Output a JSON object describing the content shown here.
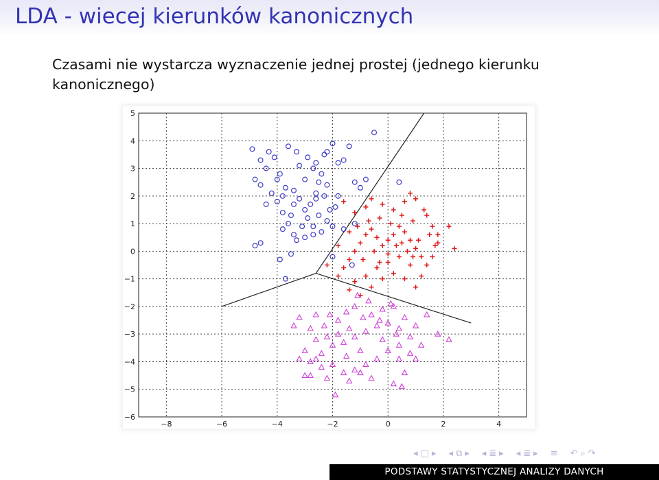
{
  "slide": {
    "title": "LDA - wiecej kierunków kanonicznych",
    "text": "Czasami nie wystarcza wyznaczenie jednej prostej (jednego kierunku kanonicznego)"
  },
  "footer": {
    "right_text": "PODSTAWY STATYSTYCZNEJ ANALIZY DANYCH"
  },
  "colors": {
    "title": "#3333b3",
    "class_blue": "#3c3cc8",
    "class_red": "#e01818",
    "class_magenta": "#d040d8",
    "footer_bg": "#000000"
  },
  "chart_data": {
    "type": "scatter",
    "title": "",
    "xlabel": "",
    "ylabel": "",
    "xlim": [
      -9,
      5
    ],
    "ylim": [
      -6,
      5
    ],
    "xticks": [
      -8,
      -6,
      -4,
      -2,
      0,
      2,
      4
    ],
    "yticks": [
      5,
      4,
      3,
      2,
      1,
      0,
      -1,
      -2,
      -3,
      -4,
      -5,
      -6
    ],
    "grid": true,
    "series": [
      {
        "marker": "circle",
        "color": "#3c3cc8",
        "points": [
          [
            -4.9,
            3.7
          ],
          [
            -4.6,
            3.3
          ],
          [
            -4.4,
            3.0
          ],
          [
            -4.8,
            2.6
          ],
          [
            -4.6,
            2.4
          ],
          [
            -4.2,
            2.1
          ],
          [
            -4.4,
            1.7
          ],
          [
            -4.0,
            1.8
          ],
          [
            -3.8,
            1.4
          ],
          [
            -3.6,
            1.0
          ],
          [
            -3.8,
            0.8
          ],
          [
            -3.4,
            0.6
          ],
          [
            -3.0,
            0.5
          ],
          [
            -2.7,
            0.6
          ],
          [
            -2.4,
            0.7
          ],
          [
            -2.0,
            0.9
          ],
          [
            -1.9,
            1.6
          ],
          [
            -1.8,
            2.0
          ],
          [
            -2.2,
            2.4
          ],
          [
            -2.4,
            2.8
          ],
          [
            -2.6,
            3.2
          ],
          [
            -2.3,
            3.5
          ],
          [
            -2.0,
            3.9
          ],
          [
            -1.6,
            3.3
          ],
          [
            -1.4,
            3.8
          ],
          [
            -1.2,
            2.5
          ],
          [
            -1.0,
            2.3
          ],
          [
            -0.8,
            2.6
          ],
          [
            -3.2,
            3.1
          ],
          [
            -3.0,
            2.6
          ],
          [
            -3.4,
            2.2
          ],
          [
            -3.2,
            1.9
          ],
          [
            -2.8,
            1.7
          ],
          [
            -2.6,
            2.1
          ],
          [
            -2.9,
            1.2
          ],
          [
            -3.1,
            0.9
          ],
          [
            -3.5,
            1.3
          ],
          [
            -3.7,
            2.3
          ],
          [
            -3.9,
            2.8
          ],
          [
            -4.1,
            3.4
          ],
          [
            -4.3,
            3.6
          ],
          [
            -3.6,
            3.8
          ],
          [
            -3.3,
            3.6
          ],
          [
            -2.9,
            3.4
          ],
          [
            -2.7,
            3.0
          ],
          [
            -2.5,
            2.5
          ],
          [
            -2.3,
            2.0
          ],
          [
            -2.1,
            1.5
          ],
          [
            -2.5,
            1.3
          ],
          [
            -2.7,
            0.9
          ],
          [
            -3.3,
            0.4
          ],
          [
            -4.6,
            0.3
          ],
          [
            -4.8,
            0.2
          ],
          [
            -3.5,
            -0.1
          ],
          [
            -3.9,
            -0.3
          ],
          [
            -3.7,
            -1.0
          ],
          [
            -2.0,
            -0.2
          ],
          [
            -1.3,
            -0.5
          ],
          [
            -0.5,
            4.3
          ],
          [
            -1.2,
            1.0
          ],
          [
            -1.6,
            0.8
          ],
          [
            0.4,
            2.5
          ],
          [
            -2.2,
            3.6
          ],
          [
            -1.8,
            3.2
          ],
          [
            -3.0,
            1.5
          ],
          [
            -3.4,
            1.7
          ],
          [
            -3.8,
            2.0
          ],
          [
            -4.0,
            2.6
          ],
          [
            -2.6,
            1.9
          ],
          [
            -2.2,
            1.1
          ]
        ]
      },
      {
        "marker": "plus",
        "color": "#e01818",
        "points": [
          [
            -1.6,
            1.8
          ],
          [
            -1.2,
            1.4
          ],
          [
            -0.8,
            1.6
          ],
          [
            -0.6,
            1.9
          ],
          [
            -0.2,
            1.7
          ],
          [
            0.2,
            1.5
          ],
          [
            0.6,
            1.8
          ],
          [
            0.8,
            2.1
          ],
          [
            1.0,
            1.9
          ],
          [
            1.4,
            1.3
          ],
          [
            1.6,
            0.9
          ],
          [
            1.8,
            0.6
          ],
          [
            2.2,
            0.9
          ],
          [
            2.4,
            0.1
          ],
          [
            1.8,
            0.3
          ],
          [
            1.6,
            -0.2
          ],
          [
            1.4,
            -0.5
          ],
          [
            1.2,
            -0.2
          ],
          [
            1.0,
            0.1
          ],
          [
            0.8,
            0.4
          ],
          [
            0.6,
            0.7
          ],
          [
            0.4,
            0.9
          ],
          [
            0.2,
            0.6
          ],
          [
            0.0,
            0.4
          ],
          [
            -0.2,
            0.2
          ],
          [
            -0.4,
            0.5
          ],
          [
            -0.6,
            0.8
          ],
          [
            -0.8,
            0.6
          ],
          [
            -1.0,
            0.3
          ],
          [
            -1.2,
            0.0
          ],
          [
            -1.4,
            -0.3
          ],
          [
            -1.6,
            -0.6
          ],
          [
            -1.8,
            -0.9
          ],
          [
            -1.2,
            -1.1
          ],
          [
            -0.8,
            -0.9
          ],
          [
            -0.4,
            -0.6
          ],
          [
            0.0,
            -0.4
          ],
          [
            0.4,
            -0.2
          ],
          [
            0.8,
            -0.5
          ],
          [
            1.2,
            -0.9
          ],
          [
            1.0,
            -1.3
          ],
          [
            0.6,
            -1.0
          ],
          [
            0.2,
            -0.8
          ],
          [
            -0.2,
            -1.0
          ],
          [
            -0.6,
            -1.3
          ],
          [
            -1.0,
            -1.6
          ],
          [
            -1.4,
            -1.4
          ],
          [
            0.3,
            0.2
          ],
          [
            0.7,
            0.0
          ],
          [
            1.1,
            0.4
          ],
          [
            1.5,
            0.6
          ],
          [
            -0.3,
            1.2
          ],
          [
            -0.7,
            1.1
          ],
          [
            0.1,
            1.0
          ],
          [
            0.5,
            1.3
          ],
          [
            0.9,
            1.1
          ],
          [
            1.3,
            1.5
          ],
          [
            -1.1,
            0.9
          ],
          [
            -0.5,
            0.0
          ],
          [
            0.0,
            -0.1
          ],
          [
            0.5,
            0.3
          ],
          [
            -1.4,
            0.7
          ],
          [
            -1.8,
            0.2
          ],
          [
            -0.9,
            -0.3
          ],
          [
            -0.3,
            -0.4
          ],
          [
            0.9,
            -0.2
          ],
          [
            1.7,
            0.2
          ],
          [
            -2.2,
            -0.5
          ]
        ]
      },
      {
        "marker": "triangle",
        "color": "#d040d8",
        "points": [
          [
            -3.2,
            -2.4
          ],
          [
            -3.4,
            -2.7
          ],
          [
            -2.8,
            -2.8
          ],
          [
            -2.6,
            -3.2
          ],
          [
            -2.3,
            -2.7
          ],
          [
            -2.1,
            -2.3
          ],
          [
            -1.8,
            -2.5
          ],
          [
            -1.5,
            -2.2
          ],
          [
            -1.2,
            -2.0
          ],
          [
            -0.9,
            -2.4
          ],
          [
            -0.6,
            -2.3
          ],
          [
            -0.2,
            -2.1
          ],
          [
            0.2,
            -2.0
          ],
          [
            0.6,
            -2.4
          ],
          [
            1.0,
            -2.7
          ],
          [
            1.4,
            -2.3
          ],
          [
            1.8,
            -3.0
          ],
          [
            2.2,
            -3.2
          ],
          [
            -3.0,
            -3.6
          ],
          [
            -3.2,
            -3.9
          ],
          [
            -2.8,
            -4.0
          ],
          [
            -2.4,
            -3.7
          ],
          [
            -2.0,
            -3.4
          ],
          [
            -1.6,
            -3.3
          ],
          [
            -1.2,
            -3.1
          ],
          [
            -0.8,
            -2.9
          ],
          [
            -0.4,
            -2.7
          ],
          [
            0.0,
            -2.6
          ],
          [
            0.4,
            -2.8
          ],
          [
            0.8,
            -3.1
          ],
          [
            0.4,
            -3.4
          ],
          [
            0.0,
            -3.6
          ],
          [
            -0.4,
            -3.9
          ],
          [
            -0.8,
            -4.1
          ],
          [
            -1.2,
            -4.3
          ],
          [
            -1.6,
            -4.4
          ],
          [
            -2.0,
            -4.1
          ],
          [
            -2.4,
            -4.2
          ],
          [
            -2.8,
            -4.5
          ],
          [
            -3.0,
            -4.5
          ],
          [
            -2.2,
            -4.6
          ],
          [
            -1.4,
            -4.7
          ],
          [
            -0.6,
            -4.6
          ],
          [
            0.2,
            -4.8
          ],
          [
            0.6,
            -4.4
          ],
          [
            0.8,
            -3.7
          ],
          [
            1.2,
            -3.4
          ],
          [
            -1.9,
            -5.2
          ],
          [
            0.5,
            -4.9
          ],
          [
            -1.0,
            -3.6
          ],
          [
            -1.4,
            -2.8
          ],
          [
            -1.8,
            -3.0
          ],
          [
            -0.2,
            -3.2
          ],
          [
            0.3,
            -3.0
          ],
          [
            -2.6,
            -2.3
          ],
          [
            -0.7,
            -1.8
          ],
          [
            -1.1,
            -1.6
          ],
          [
            0.1,
            -1.9
          ],
          [
            -0.3,
            -2.5
          ],
          [
            -2.2,
            -3.1
          ],
          [
            -1.5,
            -3.8
          ],
          [
            -2.6,
            -3.9
          ],
          [
            -1.0,
            -4.4
          ],
          [
            1.0,
            -3.9
          ],
          [
            0.4,
            -3.9
          ]
        ]
      }
    ],
    "boundaries": [
      [
        [
          -2.6,
          -0.8
        ],
        [
          1.3,
          7.5
        ]
      ],
      [
        [
          -2.6,
          -0.8
        ],
        [
          -6.0,
          -2.0
        ]
      ],
      [
        [
          -2.6,
          -0.8
        ],
        [
          3.0,
          -2.6
        ]
      ]
    ]
  }
}
